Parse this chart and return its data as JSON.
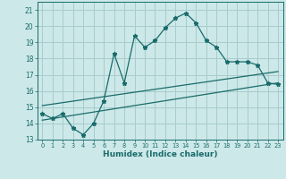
{
  "xlabel": "Humidex (Indice chaleur)",
  "bg_color": "#cce8e8",
  "grid_color": "#a8cccc",
  "line_color": "#1a6b6b",
  "xlim": [
    -0.5,
    23.5
  ],
  "ylim": [
    13,
    21.5
  ],
  "xticks": [
    0,
    1,
    2,
    3,
    4,
    5,
    6,
    7,
    8,
    9,
    10,
    11,
    12,
    13,
    14,
    15,
    16,
    17,
    18,
    19,
    20,
    21,
    22,
    23
  ],
  "yticks": [
    13,
    14,
    15,
    16,
    17,
    18,
    19,
    20,
    21
  ],
  "main_x": [
    0,
    1,
    2,
    3,
    4,
    5,
    6,
    7,
    8,
    9,
    10,
    11,
    12,
    13,
    14,
    15,
    16,
    17,
    18,
    19,
    20,
    21,
    22,
    23
  ],
  "main_y": [
    14.6,
    14.3,
    14.6,
    13.7,
    13.3,
    14.0,
    15.4,
    18.3,
    16.5,
    19.4,
    18.7,
    19.1,
    19.9,
    20.5,
    20.8,
    20.2,
    19.1,
    18.7,
    17.8,
    17.8,
    17.8,
    17.6,
    16.5,
    16.4
  ],
  "line1_x": [
    0,
    23
  ],
  "line1_y": [
    15.1,
    17.2
  ],
  "line2_x": [
    0,
    23
  ],
  "line2_y": [
    14.2,
    16.5
  ]
}
